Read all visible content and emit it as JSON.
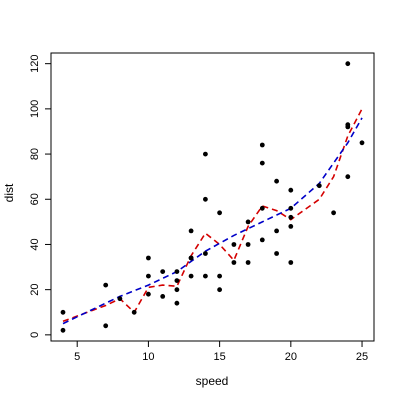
{
  "chart_data": {
    "type": "scatter",
    "xlabel": "speed",
    "ylabel": "dist",
    "xlim": [
      4,
      25
    ],
    "ylim": [
      2,
      120
    ],
    "x_ticks": [
      "5",
      "10",
      "15",
      "20",
      "25"
    ],
    "y_ticks": [
      "0",
      "20",
      "40",
      "60",
      "80",
      "100",
      "120"
    ],
    "grid": false,
    "points": [
      [
        4,
        2
      ],
      [
        4,
        10
      ],
      [
        7,
        4
      ],
      [
        7,
        22
      ],
      [
        8,
        16
      ],
      [
        9,
        10
      ],
      [
        10,
        18
      ],
      [
        10,
        26
      ],
      [
        10,
        34
      ],
      [
        11,
        17
      ],
      [
        11,
        28
      ],
      [
        12,
        14
      ],
      [
        12,
        20
      ],
      [
        12,
        24
      ],
      [
        12,
        28
      ],
      [
        13,
        26
      ],
      [
        13,
        34
      ],
      [
        13,
        34
      ],
      [
        13,
        46
      ],
      [
        14,
        26
      ],
      [
        14,
        36
      ],
      [
        14,
        60
      ],
      [
        14,
        80
      ],
      [
        15,
        20
      ],
      [
        15,
        26
      ],
      [
        15,
        54
      ],
      [
        16,
        32
      ],
      [
        16,
        40
      ],
      [
        17,
        32
      ],
      [
        17,
        40
      ],
      [
        17,
        50
      ],
      [
        18,
        42
      ],
      [
        18,
        56
      ],
      [
        18,
        76
      ],
      [
        18,
        84
      ],
      [
        19,
        36
      ],
      [
        19,
        46
      ],
      [
        19,
        68
      ],
      [
        20,
        32
      ],
      [
        20,
        48
      ],
      [
        20,
        52
      ],
      [
        20,
        56
      ],
      [
        20,
        64
      ],
      [
        22,
        66
      ],
      [
        23,
        54
      ],
      [
        24,
        70
      ],
      [
        24,
        92
      ],
      [
        24,
        93
      ],
      [
        24,
        120
      ],
      [
        25,
        85
      ]
    ],
    "series": [
      {
        "style": "dashed",
        "color": "#d40000",
        "x": [
          4,
          7,
          8,
          9,
          10,
          11,
          12,
          13,
          14,
          15,
          16,
          17,
          18,
          19,
          20,
          22,
          23,
          24,
          25
        ],
        "values": [
          6,
          13,
          16,
          10,
          21,
          22,
          21.5,
          35,
          45,
          40,
          33,
          48,
          57,
          55,
          51,
          60,
          70,
          88,
          100
        ]
      },
      {
        "style": "dashed",
        "color": "#0000c8",
        "x": [
          4,
          6,
          8,
          10,
          12,
          14,
          16,
          18,
          20,
          22,
          24,
          25
        ],
        "values": [
          5,
          11,
          17,
          22,
          28,
          37,
          44,
          50,
          56,
          67,
          85,
          96
        ]
      }
    ]
  }
}
